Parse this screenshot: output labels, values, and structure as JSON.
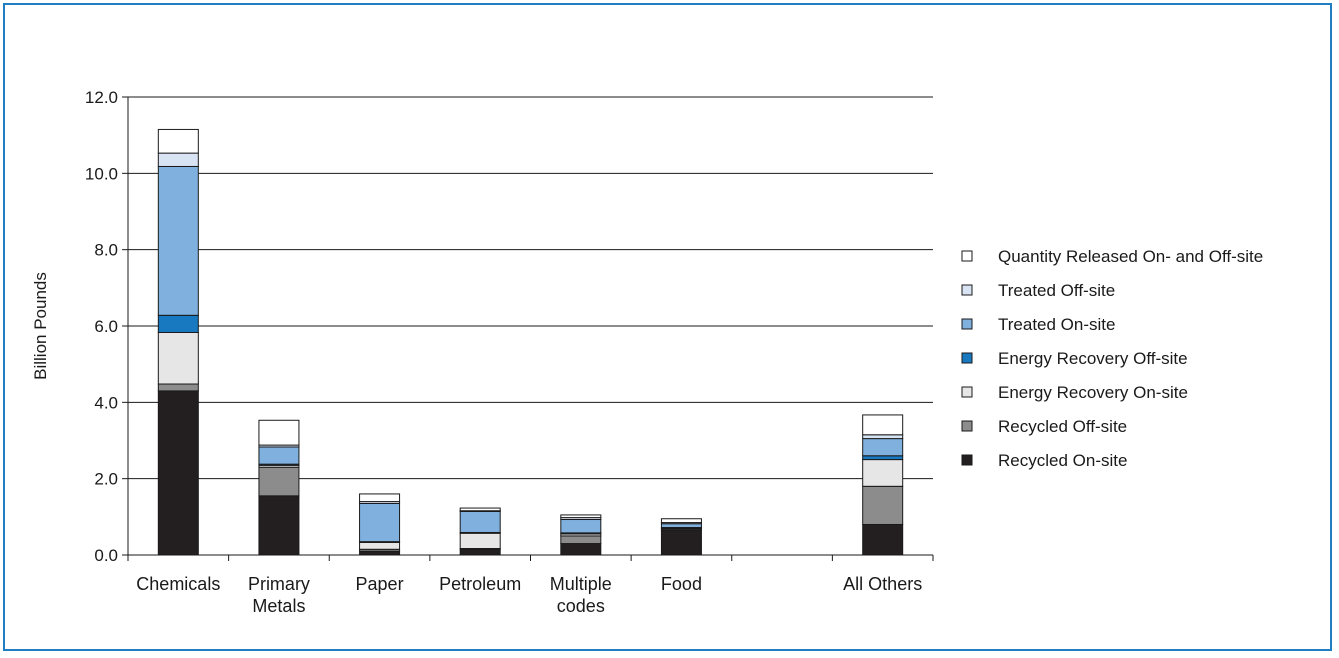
{
  "chart_data": {
    "type": "bar",
    "stacked": true,
    "ylabel": "Billion Pounds",
    "ylim": [
      0,
      12
    ],
    "yticks": [
      "0.0",
      "2.0",
      "4.0",
      "6.0",
      "8.0",
      "10.0",
      "12.0"
    ],
    "grid": true,
    "legend_position": "right",
    "categories": [
      [
        "Chemicals"
      ],
      [
        "Primary",
        "Metals"
      ],
      [
        "Paper"
      ],
      [
        "Petroleum"
      ],
      [
        "Multiple",
        "codes"
      ],
      [
        "Food"
      ],
      [
        ""
      ],
      [
        "All Others"
      ]
    ],
    "series": [
      {
        "name": "Recycled On-site",
        "color": "#231f20",
        "values": [
          4.3,
          1.55,
          0.1,
          0.15,
          0.3,
          0.65,
          0,
          0.8
        ]
      },
      {
        "name": "Recycled Off-site",
        "color": "#8c8c8c",
        "values": [
          0.18,
          0.75,
          0.05,
          0.02,
          0.2,
          0.03,
          0,
          1.0
        ]
      },
      {
        "name": "Energy Recovery On-site",
        "color": "#e6e6e6",
        "values": [
          1.35,
          0.05,
          0.18,
          0.4,
          0.05,
          0.02,
          0,
          0.7
        ]
      },
      {
        "name": "Energy Recovery Off-site",
        "color": "#1878c0",
        "values": [
          0.45,
          0.03,
          0.02,
          0.02,
          0.03,
          0.02,
          0,
          0.1
        ]
      },
      {
        "name": "Treated On-site",
        "color": "#7fb0de",
        "values": [
          3.9,
          0.45,
          1.0,
          0.55,
          0.35,
          0.1,
          0,
          0.45
        ]
      },
      {
        "name": "Treated Off-site",
        "color": "#d8e4f3",
        "values": [
          0.35,
          0.05,
          0.05,
          0.02,
          0.05,
          0.03,
          0,
          0.1
        ]
      },
      {
        "name": "Quantity Released On- and Off-site",
        "color": "#ffffff",
        "values": [
          0.62,
          0.65,
          0.2,
          0.07,
          0.07,
          0.1,
          0,
          0.52
        ]
      }
    ]
  }
}
